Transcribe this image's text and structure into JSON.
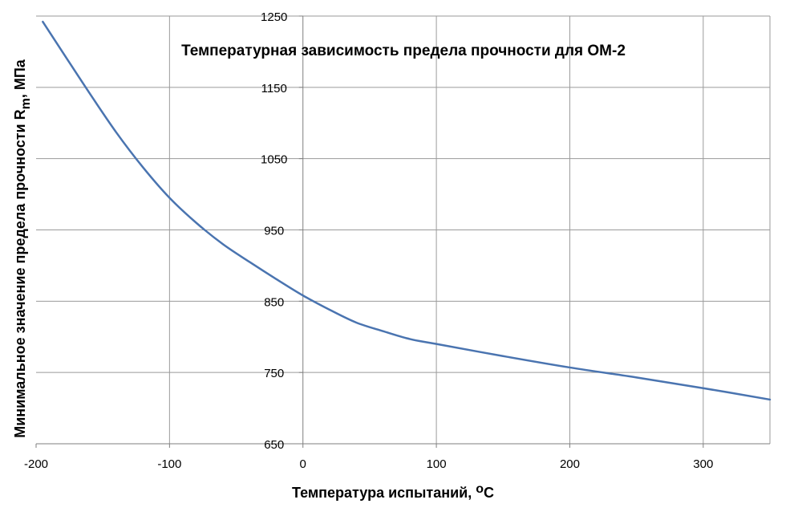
{
  "chart_data": {
    "type": "line",
    "title": "Температурная зависимость предела прочности для ОМ-2",
    "xlabel": "Температура  испытаний, ",
    "xlabel_sup": "о",
    "xlabel_tail": "С",
    "ylabel": "Минимальное  значение  предела  прочности R",
    "ylabel_sub": "m",
    "ylabel_tail": ", МПа",
    "xlim": [
      -200,
      350
    ],
    "ylim": [
      650,
      1250
    ],
    "x_ticks": [
      -200,
      -100,
      0,
      100,
      200,
      300
    ],
    "x_tick_labels": [
      "-200",
      "-100",
      "0",
      "100",
      "200",
      "300"
    ],
    "y_ticks": [
      650,
      750,
      850,
      950,
      1050,
      1150,
      1250
    ],
    "y_tick_labels": [
      "650",
      "750",
      "850",
      "950",
      "1050",
      "1150",
      "1250"
    ],
    "grid": true,
    "series": [
      {
        "color": "#4a74b0",
        "x": [
          -195,
          -180,
          -160,
          -140,
          -120,
          -100,
          -80,
          -60,
          -40,
          -20,
          0,
          20,
          40,
          60,
          80,
          100,
          150,
          200,
          250,
          300,
          350
        ],
        "y": [
          1242,
          1199,
          1142,
          1087,
          1038,
          995,
          960,
          930,
          905,
          881,
          858,
          838,
          820,
          808,
          797,
          790,
          773,
          757,
          743,
          728,
          712
        ]
      }
    ]
  }
}
